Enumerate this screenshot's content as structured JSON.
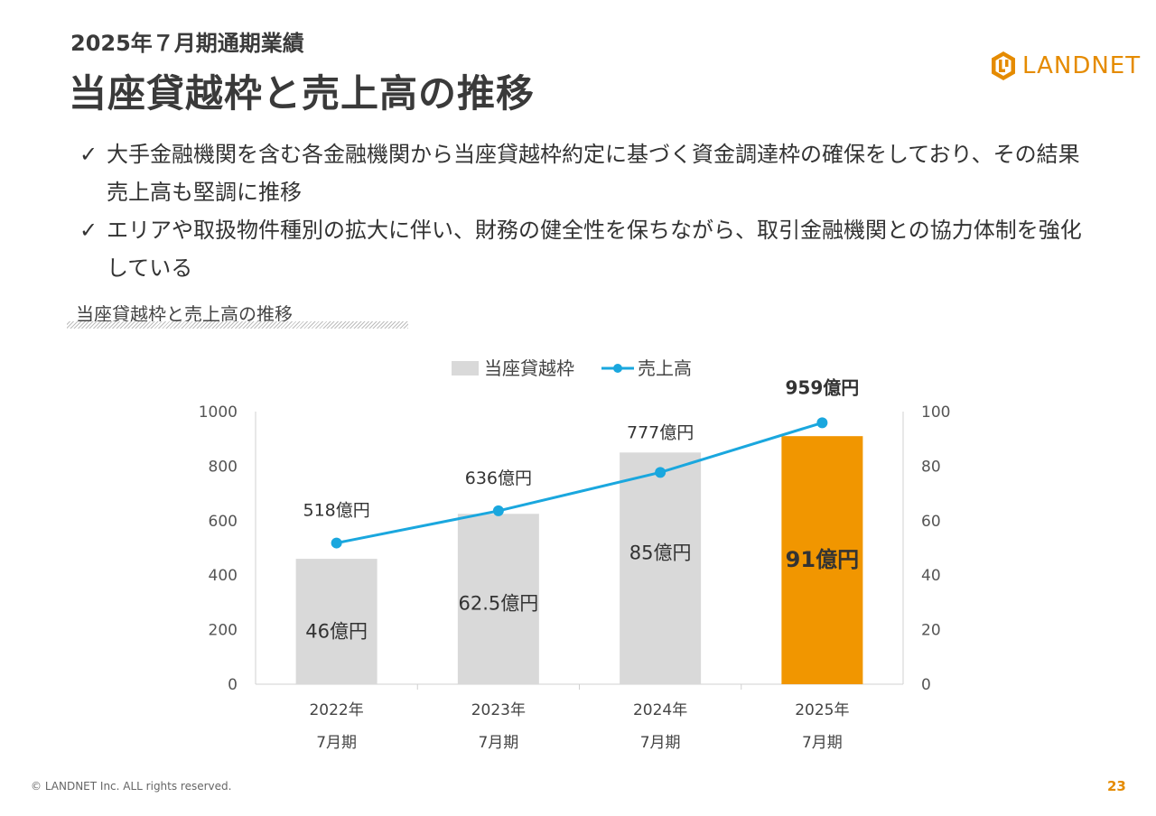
{
  "header": {
    "subheading": "2025年７月期通期業績",
    "title": "当座貸越枠と売上高の推移"
  },
  "logo": {
    "text": "LANDNET",
    "color": "#e58b00"
  },
  "bullets": [
    {
      "check": "✓",
      "text": "大手金融機関を含む各金融機関から当座貸越枠約定に基づく資金調達枠の確保をしており、その結果売上高も堅調に推移"
    },
    {
      "check": "✓",
      "text": "エリアや取扱物件種別の拡大に伴い、財務の健全性を保ちながら、取引金融機関との協力体制を強化している"
    }
  ],
  "section_label": "当座貸越枠と売上高の推移",
  "chart_data": {
    "type": "bar",
    "categories": [
      "2022年\n7月期",
      "2023年\n7月期",
      "2024年\n7月期",
      "2025年\n7月期"
    ],
    "series": [
      {
        "name": "当座貸越枠",
        "kind": "bar",
        "axis": "right",
        "values": [
          46,
          62.5,
          85,
          91
        ],
        "labels": [
          "46億円",
          "62.5億円",
          "85億円",
          "91億円"
        ],
        "color": "#d9d9d9",
        "highlight_color": "#f19600"
      },
      {
        "name": "売上高",
        "kind": "line",
        "axis": "left",
        "values": [
          518,
          636,
          777,
          959
        ],
        "labels": [
          "518億円",
          "636億円",
          "777億円",
          "959億円"
        ],
        "color": "#1aa7de"
      }
    ],
    "y_left": {
      "min": 0,
      "max": 1000,
      "ticks": [
        0,
        200,
        400,
        600,
        800,
        1000
      ]
    },
    "y_right": {
      "min": 0,
      "max": 100,
      "ticks": [
        0,
        20,
        40,
        60,
        80,
        100
      ]
    },
    "legend": "top-center",
    "grid": false
  },
  "footer": {
    "copyright": "© LANDNET Inc. ALL rights reserved.",
    "page": "23"
  }
}
